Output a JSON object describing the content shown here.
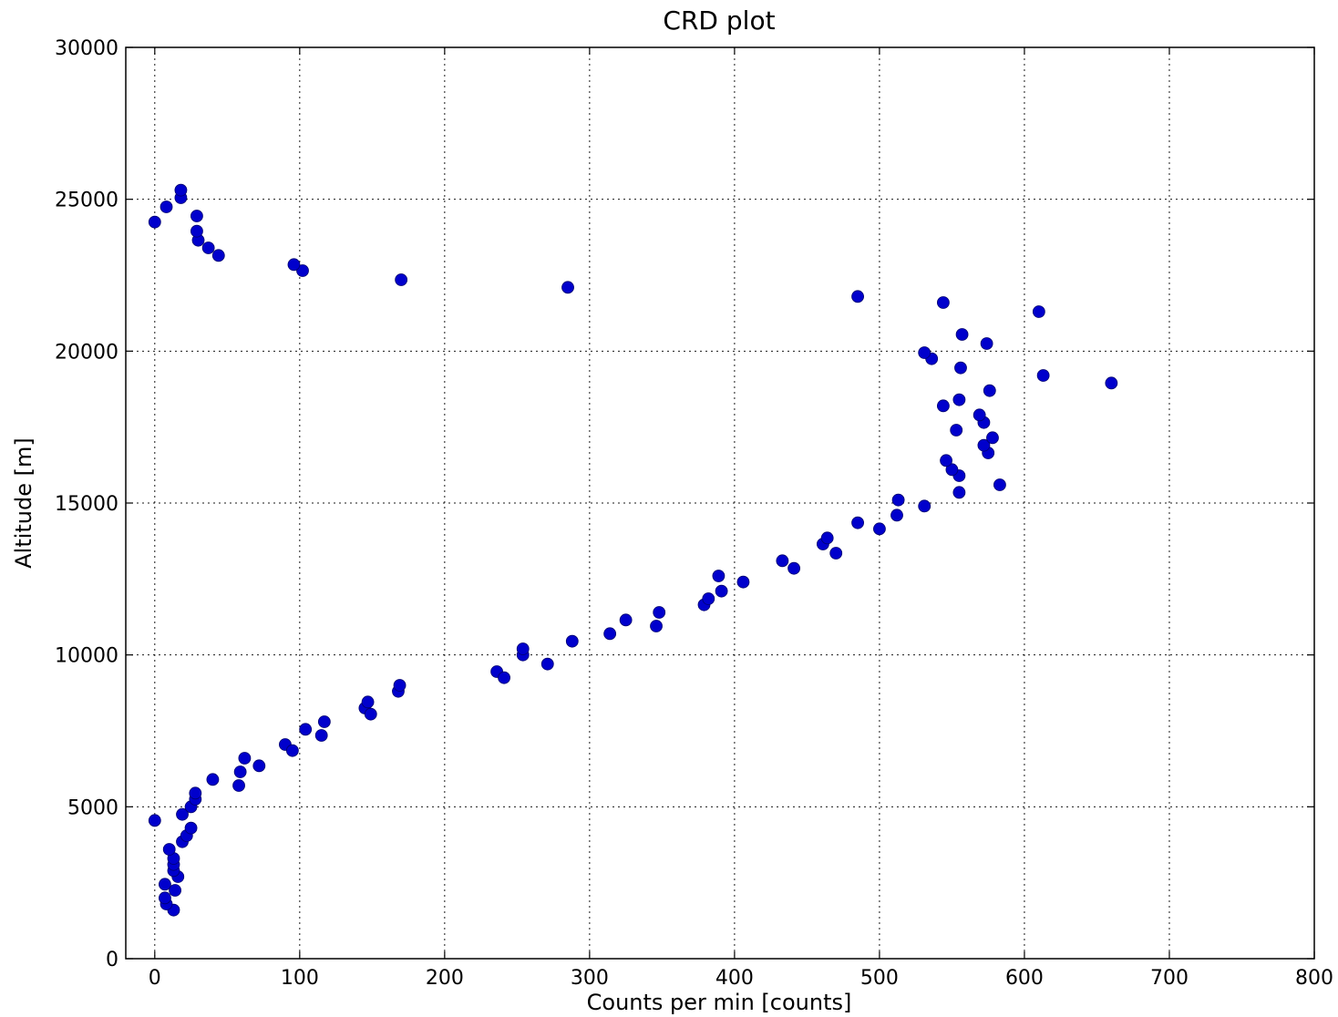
{
  "chart_data": {
    "type": "scatter",
    "title": "CRD plot",
    "xlabel": "Counts per min [counts]",
    "ylabel": "Altitude [m]",
    "xlim": [
      -20,
      800
    ],
    "ylim": [
      0,
      30000
    ],
    "x_ticks": [
      0,
      100,
      200,
      300,
      400,
      500,
      600,
      700,
      800
    ],
    "y_ticks": [
      0,
      5000,
      10000,
      15000,
      20000,
      25000,
      30000
    ],
    "grid": true,
    "legend": "none",
    "marker_color": "#0000cc",
    "series": [
      {
        "points": [
          [
            0,
            4550
          ],
          [
            13,
            1600
          ],
          [
            8,
            1800
          ],
          [
            7,
            2000
          ],
          [
            14,
            2250
          ],
          [
            7,
            2450
          ],
          [
            16,
            2700
          ],
          [
            13,
            2900
          ],
          [
            13,
            3100
          ],
          [
            13,
            3300
          ],
          [
            10,
            3600
          ],
          [
            19,
            3850
          ],
          [
            22,
            4050
          ],
          [
            25,
            4300
          ],
          [
            19,
            4750
          ],
          [
            25,
            5000
          ],
          [
            28,
            5250
          ],
          [
            28,
            5450
          ],
          [
            40,
            5900
          ],
          [
            58,
            5700
          ],
          [
            59,
            6150
          ],
          [
            62,
            6600
          ],
          [
            72,
            6350
          ],
          [
            90,
            7050
          ],
          [
            95,
            6850
          ],
          [
            104,
            7550
          ],
          [
            115,
            7350
          ],
          [
            117,
            7800
          ],
          [
            145,
            8250
          ],
          [
            147,
            8450
          ],
          [
            149,
            8050
          ],
          [
            168,
            8800
          ],
          [
            169,
            9000
          ],
          [
            236,
            9450
          ],
          [
            241,
            9250
          ],
          [
            254,
            10000
          ],
          [
            254,
            10200
          ],
          [
            271,
            9700
          ],
          [
            288,
            10450
          ],
          [
            314,
            10700
          ],
          [
            325,
            11150
          ],
          [
            346,
            10950
          ],
          [
            348,
            11400
          ],
          [
            379,
            11650
          ],
          [
            382,
            11850
          ],
          [
            389,
            12600
          ],
          [
            391,
            12100
          ],
          [
            406,
            12400
          ],
          [
            433,
            13100
          ],
          [
            441,
            12850
          ],
          [
            461,
            13650
          ],
          [
            464,
            13850
          ],
          [
            470,
            13350
          ],
          [
            485,
            14350
          ],
          [
            500,
            14150
          ],
          [
            512,
            14600
          ],
          [
            513,
            15100
          ],
          [
            531,
            14900
          ],
          [
            555,
            15350
          ],
          [
            583,
            15600
          ],
          [
            555,
            15900
          ],
          [
            550,
            16100
          ],
          [
            546,
            16400
          ],
          [
            575,
            16650
          ],
          [
            572,
            16900
          ],
          [
            578,
            17150
          ],
          [
            553,
            17400
          ],
          [
            572,
            17650
          ],
          [
            569,
            17900
          ],
          [
            544,
            18200
          ],
          [
            555,
            18400
          ],
          [
            576,
            18700
          ],
          [
            660,
            18950
          ],
          [
            613,
            19200
          ],
          [
            556,
            19450
          ],
          [
            536,
            19750
          ],
          [
            531,
            19950
          ],
          [
            574,
            20250
          ],
          [
            557,
            20550
          ],
          [
            610,
            21300
          ],
          [
            544,
            21600
          ],
          [
            485,
            21800
          ],
          [
            285,
            22100
          ],
          [
            170,
            22350
          ],
          [
            102,
            22650
          ],
          [
            96,
            22850
          ],
          [
            44,
            23150
          ],
          [
            37,
            23400
          ],
          [
            30,
            23650
          ],
          [
            29,
            23950
          ],
          [
            29,
            24450
          ],
          [
            0,
            24250
          ],
          [
            8,
            24750
          ],
          [
            18,
            25050
          ],
          [
            18,
            25300
          ]
        ]
      }
    ]
  }
}
